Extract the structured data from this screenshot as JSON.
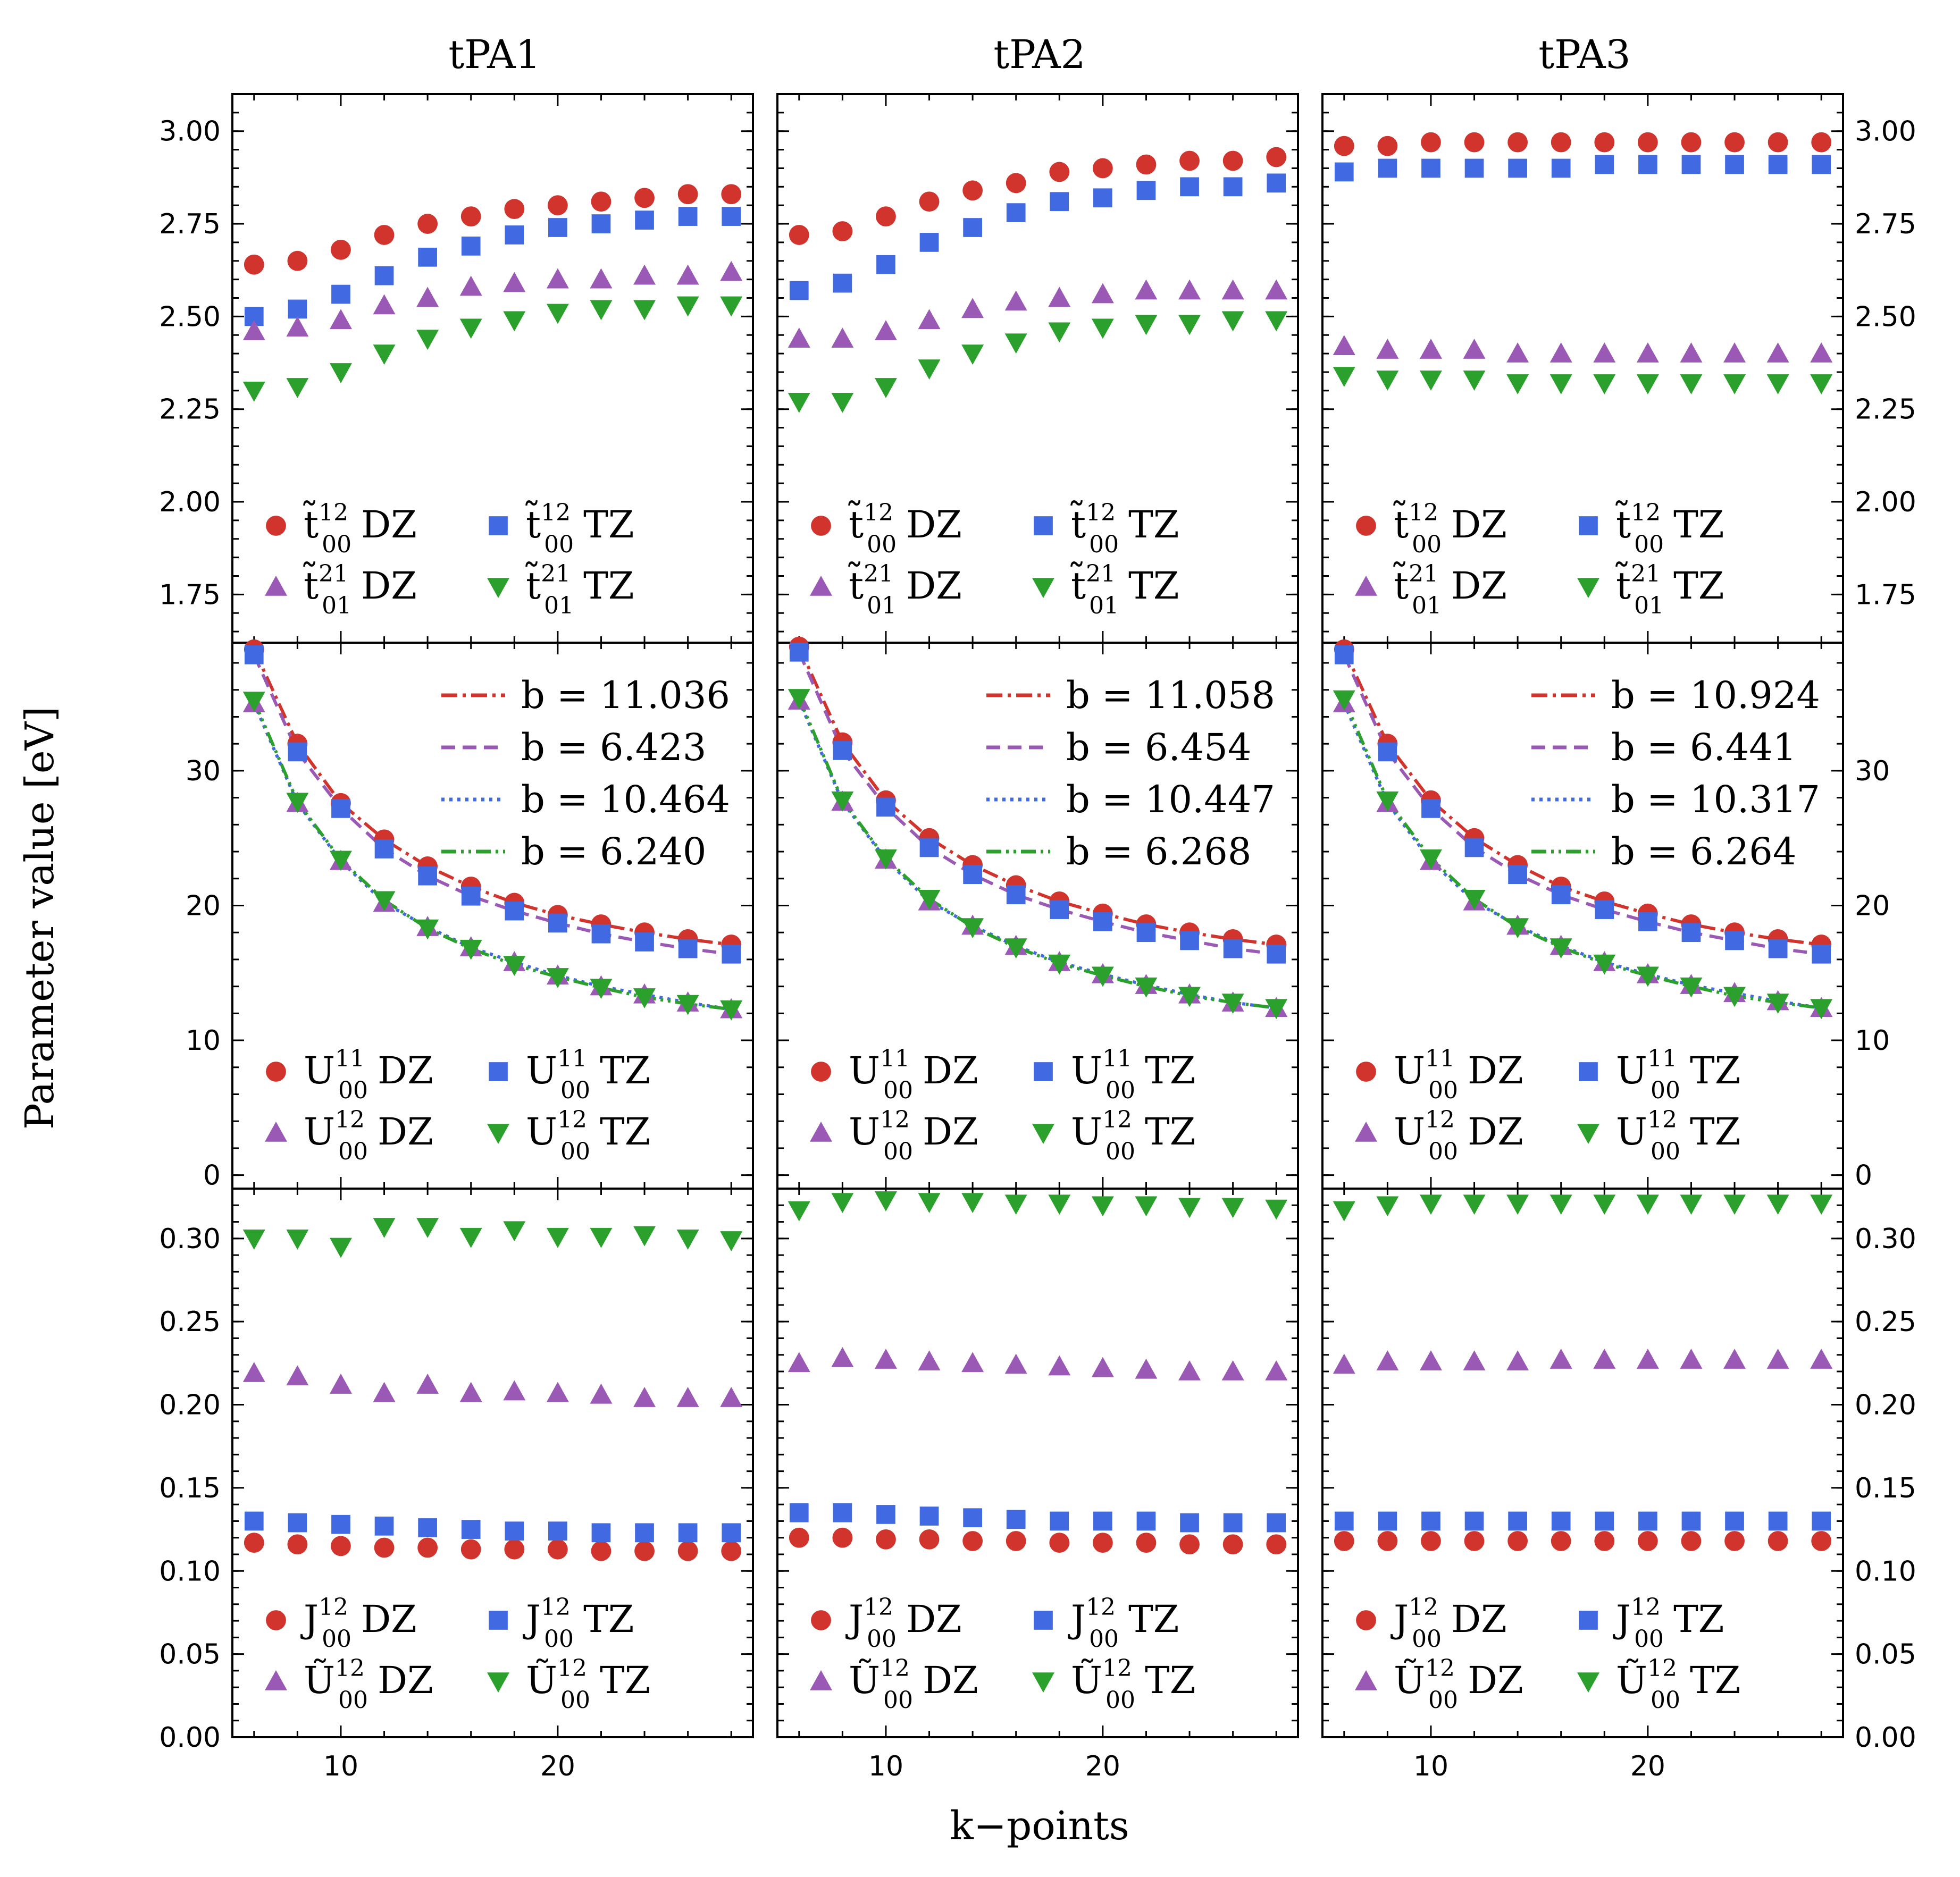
{
  "figure": {
    "column_titles": [
      "tPA1",
      "tPA2",
      "tPA3"
    ],
    "xlabel": "k−points",
    "ylabel": "Parameter value [eV]"
  },
  "colors": {
    "red": "#d0342c",
    "blue": "#4169e1",
    "purple": "#9b59b6",
    "green": "#2ca02c"
  },
  "chart_data": {
    "type": "scatter",
    "x": [
      6,
      8,
      10,
      12,
      14,
      16,
      18,
      20,
      22,
      24,
      26,
      28
    ],
    "xlim": [
      5,
      29
    ],
    "xticks": [
      "10",
      "20"
    ],
    "rows": [
      {
        "ylim": [
          1.62,
          3.1
        ],
        "yticks": [
          "1.75",
          "2.00",
          "2.25",
          "2.50",
          "2.75",
          "3.00"
        ],
        "legend": [
          {
            "label": "t̃₀₀¹² DZ",
            "base": "t̃",
            "sup": "12",
            "sub": "00",
            "suffix": "DZ",
            "marker": "circle",
            "color": "red"
          },
          {
            "label": "t̃₀₀¹² TZ",
            "base": "t̃",
            "sup": "12",
            "sub": "00",
            "suffix": "TZ",
            "marker": "square",
            "color": "blue"
          },
          {
            "label": "t̃₀₁²¹ DZ",
            "base": "t̃",
            "sup": "21",
            "sub": "01",
            "suffix": "DZ",
            "marker": "triangle-up",
            "color": "purple"
          },
          {
            "label": "t̃₀₁²¹ TZ",
            "base": "t̃",
            "sup": "21",
            "sub": "01",
            "suffix": "TZ",
            "marker": "triangle-down",
            "color": "green"
          }
        ],
        "panels": [
          {
            "series": [
              {
                "values": [
                  2.64,
                  2.65,
                  2.68,
                  2.72,
                  2.75,
                  2.77,
                  2.79,
                  2.8,
                  2.81,
                  2.82,
                  2.83,
                  2.83
                ]
              },
              {
                "values": [
                  2.5,
                  2.52,
                  2.56,
                  2.61,
                  2.66,
                  2.69,
                  2.72,
                  2.74,
                  2.75,
                  2.76,
                  2.77,
                  2.77
                ]
              },
              {
                "values": [
                  2.46,
                  2.47,
                  2.49,
                  2.53,
                  2.55,
                  2.58,
                  2.59,
                  2.6,
                  2.6,
                  2.61,
                  2.61,
                  2.62
                ]
              },
              {
                "values": [
                  2.3,
                  2.31,
                  2.35,
                  2.4,
                  2.44,
                  2.47,
                  2.49,
                  2.51,
                  2.52,
                  2.52,
                  2.53,
                  2.53
                ]
              }
            ]
          },
          {
            "series": [
              {
                "values": [
                  2.72,
                  2.73,
                  2.77,
                  2.81,
                  2.84,
                  2.86,
                  2.89,
                  2.9,
                  2.91,
                  2.92,
                  2.92,
                  2.93
                ]
              },
              {
                "values": [
                  2.57,
                  2.59,
                  2.64,
                  2.7,
                  2.74,
                  2.78,
                  2.81,
                  2.82,
                  2.84,
                  2.85,
                  2.85,
                  2.86
                ]
              },
              {
                "values": [
                  2.44,
                  2.44,
                  2.46,
                  2.49,
                  2.52,
                  2.54,
                  2.55,
                  2.56,
                  2.57,
                  2.57,
                  2.57,
                  2.57
                ]
              },
              {
                "values": [
                  2.27,
                  2.27,
                  2.31,
                  2.36,
                  2.4,
                  2.43,
                  2.46,
                  2.47,
                  2.48,
                  2.48,
                  2.49,
                  2.49
                ]
              }
            ]
          },
          {
            "series": [
              {
                "values": [
                  2.96,
                  2.96,
                  2.97,
                  2.97,
                  2.97,
                  2.97,
                  2.97,
                  2.97,
                  2.97,
                  2.97,
                  2.97,
                  2.97
                ]
              },
              {
                "values": [
                  2.89,
                  2.9,
                  2.9,
                  2.9,
                  2.9,
                  2.9,
                  2.91,
                  2.91,
                  2.91,
                  2.91,
                  2.91,
                  2.91
                ]
              },
              {
                "values": [
                  2.42,
                  2.41,
                  2.41,
                  2.41,
                  2.4,
                  2.4,
                  2.4,
                  2.4,
                  2.4,
                  2.4,
                  2.4,
                  2.4
                ]
              },
              {
                "values": [
                  2.34,
                  2.33,
                  2.33,
                  2.33,
                  2.32,
                  2.32,
                  2.32,
                  2.32,
                  2.32,
                  2.32,
                  2.32,
                  2.32
                ]
              }
            ]
          }
        ]
      },
      {
        "ylim": [
          -1,
          39.5
        ],
        "yticks": [
          "0",
          "10",
          "20",
          "30"
        ],
        "legend": [
          {
            "label": "U₀₀¹¹ DZ",
            "base": "U",
            "sup": "11",
            "sub": "00",
            "suffix": "DZ",
            "marker": "circle",
            "color": "red"
          },
          {
            "label": "U₀₀¹¹ TZ",
            "base": "U",
            "sup": "11",
            "sub": "00",
            "suffix": "TZ",
            "marker": "square",
            "color": "blue"
          },
          {
            "label": "U₀₀¹² DZ",
            "base": "U",
            "sup": "12",
            "sub": "00",
            "suffix": "DZ",
            "marker": "triangle-up",
            "color": "purple"
          },
          {
            "label": "U₀₀¹² TZ",
            "base": "U",
            "sup": "12",
            "sub": "00",
            "suffix": "TZ",
            "marker": "triangle-down",
            "color": "green"
          }
        ],
        "fit_legend_prefix": "b = ",
        "panels": [
          {
            "series": [
              {
                "values": [
                  39.0,
                  32.0,
                  27.6,
                  24.9,
                  22.9,
                  21.4,
                  20.2,
                  19.3,
                  18.6,
                  18.0,
                  17.5,
                  17.1
                ],
                "fit": {
                  "b": "11.036",
                  "style": "dashdot",
                  "color": "red"
                }
              },
              {
                "values": [
                  38.6,
                  31.4,
                  27.2,
                  24.2,
                  22.2,
                  20.7,
                  19.6,
                  18.7,
                  17.9,
                  17.3,
                  16.8,
                  16.4
                ],
                "fit": {
                  "b": "6.423",
                  "style": "dashed",
                  "color": "purple"
                }
              },
              {
                "values": [
                  35.0,
                  27.6,
                  23.3,
                  20.2,
                  18.4,
                  16.9,
                  15.8,
                  14.8,
                  14.0,
                  13.4,
                  12.8,
                  12.3
                ],
                "fit": {
                  "b": "10.464",
                  "style": "dotted",
                  "color": "blue"
                }
              },
              {
                "values": [
                  35.2,
                  27.7,
                  23.4,
                  20.4,
                  18.3,
                  16.8,
                  15.6,
                  14.7,
                  13.9,
                  13.2,
                  12.7,
                  12.3
                ],
                "fit": {
                  "b": "6.240",
                  "style": "dashdotdot",
                  "color": "green"
                }
              }
            ]
          },
          {
            "series": [
              {
                "values": [
                  39.2,
                  32.1,
                  27.8,
                  25.0,
                  23.0,
                  21.5,
                  20.3,
                  19.4,
                  18.6,
                  18.0,
                  17.5,
                  17.1
                ],
                "fit": {
                  "b": "11.058",
                  "style": "dashdot",
                  "color": "red"
                }
              },
              {
                "values": [
                  38.8,
                  31.5,
                  27.3,
                  24.3,
                  22.3,
                  20.8,
                  19.7,
                  18.8,
                  18.0,
                  17.4,
                  16.8,
                  16.4
                ],
                "fit": {
                  "b": "6.454",
                  "style": "dashed",
                  "color": "purple"
                }
              },
              {
                "values": [
                  35.2,
                  27.7,
                  23.4,
                  20.3,
                  18.5,
                  17.0,
                  15.8,
                  14.9,
                  14.1,
                  13.4,
                  12.8,
                  12.4
                ],
                "fit": {
                  "b": "10.447",
                  "style": "dotted",
                  "color": "blue"
                }
              },
              {
                "values": [
                  35.4,
                  27.8,
                  23.5,
                  20.5,
                  18.4,
                  16.9,
                  15.7,
                  14.8,
                  14.0,
                  13.3,
                  12.8,
                  12.4
                ],
                "fit": {
                  "b": "6.268",
                  "style": "dashdotdot",
                  "color": "green"
                }
              }
            ]
          },
          {
            "series": [
              {
                "values": [
                  39.0,
                  32.0,
                  27.8,
                  25.0,
                  23.0,
                  21.4,
                  20.3,
                  19.4,
                  18.6,
                  18.0,
                  17.5,
                  17.1
                ],
                "fit": {
                  "b": "10.924",
                  "style": "dashdot",
                  "color": "red"
                }
              },
              {
                "values": [
                  38.6,
                  31.4,
                  27.2,
                  24.3,
                  22.3,
                  20.8,
                  19.7,
                  18.8,
                  18.0,
                  17.4,
                  16.8,
                  16.4
                ],
                "fit": {
                  "b": "6.441",
                  "style": "dashed",
                  "color": "purple"
                }
              },
              {
                "values": [
                  35.0,
                  27.6,
                  23.3,
                  20.3,
                  18.5,
                  17.0,
                  15.8,
                  14.9,
                  14.1,
                  13.5,
                  12.9,
                  12.4
                ],
                "fit": {
                  "b": "10.317",
                  "style": "dotted",
                  "color": "blue"
                }
              },
              {
                "values": [
                  35.3,
                  27.8,
                  23.5,
                  20.5,
                  18.4,
                  16.9,
                  15.7,
                  14.8,
                  14.0,
                  13.3,
                  12.8,
                  12.4
                ],
                "fit": {
                  "b": "6.264",
                  "style": "dashdotdot",
                  "color": "green"
                }
              }
            ]
          }
        ]
      },
      {
        "ylim": [
          0.0,
          0.33
        ],
        "yticks": [
          "0.00",
          "0.05",
          "0.10",
          "0.15",
          "0.20",
          "0.25",
          "0.30"
        ],
        "legend": [
          {
            "label": "J₀₀¹² DZ",
            "base": "J",
            "sup": "12",
            "sub": "00",
            "suffix": "DZ",
            "marker": "circle",
            "color": "red"
          },
          {
            "label": "J₀₀¹² TZ",
            "base": "J",
            "sup": "12",
            "sub": "00",
            "suffix": "TZ",
            "marker": "square",
            "color": "blue"
          },
          {
            "label": "Ũ₀₀¹² DZ",
            "base": "Ũ",
            "sup": "12",
            "sub": "00",
            "suffix": "DZ",
            "marker": "triangle-up",
            "color": "purple"
          },
          {
            "label": "Ũ₀₀¹² TZ",
            "base": "Ũ",
            "sup": "12",
            "sub": "00",
            "suffix": "TZ",
            "marker": "triangle-down",
            "color": "green"
          }
        ],
        "panels": [
          {
            "series": [
              {
                "values": [
                  0.117,
                  0.116,
                  0.115,
                  0.114,
                  0.114,
                  0.113,
                  0.113,
                  0.113,
                  0.112,
                  0.112,
                  0.112,
                  0.112
                ]
              },
              {
                "values": [
                  0.13,
                  0.129,
                  0.128,
                  0.127,
                  0.126,
                  0.125,
                  0.124,
                  0.124,
                  0.123,
                  0.123,
                  0.123,
                  0.123
                ]
              },
              {
                "values": [
                  0.219,
                  0.217,
                  0.212,
                  0.207,
                  0.212,
                  0.207,
                  0.208,
                  0.207,
                  0.206,
                  0.204,
                  0.204,
                  0.204
                ]
              },
              {
                "values": [
                  0.3,
                  0.3,
                  0.295,
                  0.307,
                  0.307,
                  0.301,
                  0.305,
                  0.301,
                  0.301,
                  0.302,
                  0.3,
                  0.299
                ]
              }
            ]
          },
          {
            "series": [
              {
                "values": [
                  0.12,
                  0.12,
                  0.119,
                  0.119,
                  0.118,
                  0.118,
                  0.117,
                  0.117,
                  0.117,
                  0.116,
                  0.116,
                  0.116
                ]
              },
              {
                "values": [
                  0.135,
                  0.135,
                  0.134,
                  0.133,
                  0.132,
                  0.131,
                  0.13,
                  0.13,
                  0.13,
                  0.129,
                  0.129,
                  0.129
                ]
              },
              {
                "values": [
                  0.225,
                  0.228,
                  0.227,
                  0.226,
                  0.225,
                  0.224,
                  0.223,
                  0.222,
                  0.221,
                  0.22,
                  0.22,
                  0.22
                ]
              },
              {
                "values": [
                  0.317,
                  0.322,
                  0.323,
                  0.322,
                  0.322,
                  0.321,
                  0.321,
                  0.32,
                  0.32,
                  0.319,
                  0.319,
                  0.318
                ]
              }
            ]
          },
          {
            "series": [
              {
                "values": [
                  0.118,
                  0.118,
                  0.118,
                  0.118,
                  0.118,
                  0.118,
                  0.118,
                  0.118,
                  0.118,
                  0.118,
                  0.118,
                  0.118
                ]
              },
              {
                "values": [
                  0.13,
                  0.13,
                  0.13,
                  0.13,
                  0.13,
                  0.13,
                  0.13,
                  0.13,
                  0.13,
                  0.13,
                  0.13,
                  0.13
                ]
              },
              {
                "values": [
                  0.224,
                  0.226,
                  0.226,
                  0.226,
                  0.226,
                  0.227,
                  0.227,
                  0.227,
                  0.227,
                  0.227,
                  0.227,
                  0.227
                ]
              },
              {
                "values": [
                  0.317,
                  0.32,
                  0.321,
                  0.321,
                  0.321,
                  0.321,
                  0.321,
                  0.321,
                  0.321,
                  0.321,
                  0.321,
                  0.321
                ]
              }
            ]
          }
        ]
      }
    ]
  }
}
